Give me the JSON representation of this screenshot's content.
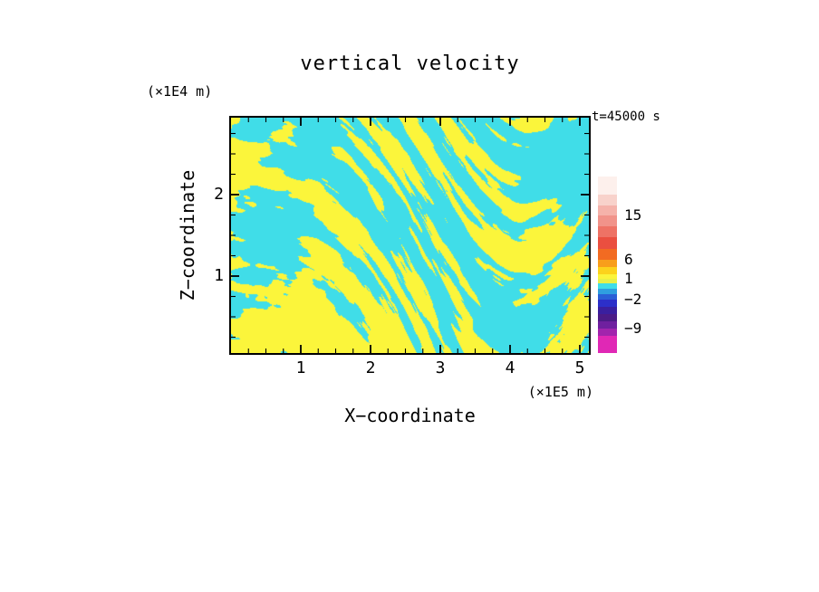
{
  "title": "vertical velocity",
  "annotation": "t=45000 s",
  "axes": {
    "x": {
      "label": "X−coordinate",
      "unit": "(×1E5 m)",
      "ticks": [
        "1",
        "2",
        "3",
        "4",
        "5"
      ]
    },
    "y": {
      "label": "Z−coordinate",
      "unit": "(×1E4 m)",
      "ticks": [
        "1",
        "2"
      ]
    }
  },
  "field_colors": {
    "cyan": "#40dde8",
    "yellow": "#fbf53b"
  },
  "colorbar": {
    "labels": [
      {
        "text": "15",
        "y": 43
      },
      {
        "text": "6",
        "y": 92
      },
      {
        "text": "1",
        "y": 113
      },
      {
        "text": "−2",
        "y": 136
      },
      {
        "text": "−9",
        "y": 168
      }
    ],
    "segments": [
      {
        "color": "#fdf0ec",
        "h": 20
      },
      {
        "color": "#f8d2cb",
        "h": 12
      },
      {
        "color": "#f5b2aa",
        "h": 11
      },
      {
        "color": "#f1938a",
        "h": 12
      },
      {
        "color": "#ee7265",
        "h": 12
      },
      {
        "color": "#ea4f40",
        "h": 13
      },
      {
        "color": "#f26b22",
        "h": 12
      },
      {
        "color": "#f89e1b",
        "h": 8
      },
      {
        "color": "#fcd21c",
        "h": 8
      },
      {
        "color": "#fbf43b",
        "h": 5
      },
      {
        "color": "#e8f048",
        "h": 5
      },
      {
        "color": "#40dde8",
        "h": 6
      },
      {
        "color": "#2f9fe0",
        "h": 6
      },
      {
        "color": "#2a5fd6",
        "h": 6
      },
      {
        "color": "#2c2fc9",
        "h": 8
      },
      {
        "color": "#3a1f9f",
        "h": 8
      },
      {
        "color": "#4c1b87",
        "h": 8
      },
      {
        "color": "#6f209f",
        "h": 8
      },
      {
        "color": "#a224ad",
        "h": 8
      },
      {
        "color": "#e028b5",
        "h": 19
      }
    ]
  },
  "chart_data": {
    "type": "heatmap",
    "title": "vertical velocity",
    "annotation": "t=45000 s",
    "xlabel": "X−coordinate",
    "x_unit": "(×1E5 m)",
    "ylabel": "Z−coordinate",
    "y_unit": "(×1E4 m)",
    "x_ticks": [
      1,
      2,
      3,
      4,
      5
    ],
    "y_ticks": [
      1,
      2
    ],
    "x_range_approx": [
      0,
      5.1
    ],
    "y_range_approx": [
      0,
      2.9
    ],
    "legend_position": "right colorbar",
    "grid": false,
    "visible_fill_levels": [
      {
        "color": "#40dde8",
        "meaning": "lower vertical-velocity band (below ~1)"
      },
      {
        "color": "#fbf53b",
        "meaning": "higher vertical-velocity band (~1 to 6)"
      }
    ],
    "field_description": "Turbulent two-tone contour-filled field of vertical velocity at t=45000 s: interleaved cyan and yellow patches; broad blobs near the left and bottom, fine tilted streaks through the mid and right of the domain.",
    "colorbar_labels": [
      15,
      6,
      1,
      -2,
      -9
    ],
    "colorbar_colors_top_to_bottom": [
      "#fdf0ec",
      "#f8d2cb",
      "#f5b2aa",
      "#f1938a",
      "#ee7265",
      "#ea4f40",
      "#f26b22",
      "#f89e1b",
      "#fcd21c",
      "#fbf43b",
      "#e8f048",
      "#40dde8",
      "#2f9fe0",
      "#2a5fd6",
      "#2c2fc9",
      "#3a1f9f",
      "#4c1b87",
      "#6f209f",
      "#a224ad",
      "#e028b5"
    ]
  }
}
